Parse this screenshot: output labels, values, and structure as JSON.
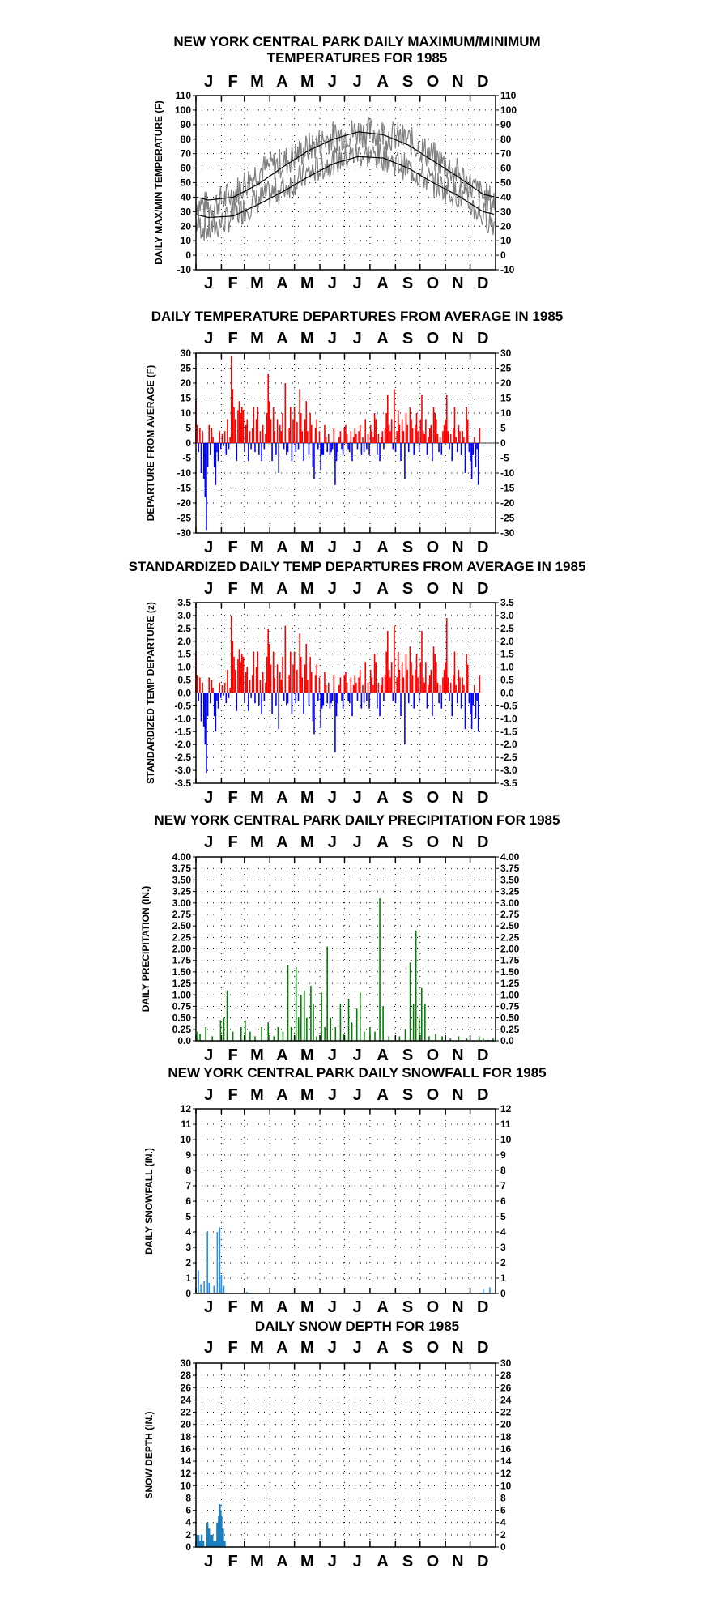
{
  "chart_data": [
    {
      "id": "temps",
      "type": "line",
      "title_lines": [
        "NEW YORK CENTRAL PARK DAILY MAXIMUM/MINIMUM",
        "TEMPERATURES FOR 1985"
      ],
      "ylabel": "DAILY MAX/MIN TEMPERATURE (F)",
      "ylim": [
        -10,
        110
      ],
      "yticks": [
        "110",
        "100",
        "90",
        "80",
        "70",
        "60",
        "50",
        "40",
        "30",
        "20",
        "10",
        "0",
        "-10"
      ],
      "months": [
        "J",
        "F",
        "M",
        "A",
        "M",
        "J",
        "J",
        "A",
        "S",
        "O",
        "N",
        "D"
      ],
      "grid": "dotted",
      "colors": {
        "observed": "#808080",
        "normals": "#000000"
      },
      "series": [
        {
          "role": "observed_max_monthly",
          "values": [
            33,
            42,
            58,
            64,
            74,
            82,
            85,
            84,
            79,
            68,
            56,
            40
          ]
        },
        {
          "role": "observed_min_monthly",
          "values": [
            17,
            27,
            38,
            46,
            56,
            65,
            70,
            68,
            60,
            50,
            42,
            27
          ]
        },
        {
          "role": "normal_max_monthly",
          "values": [
            38,
            40,
            49,
            61,
            72,
            80,
            85,
            83,
            76,
            65,
            54,
            42
          ]
        },
        {
          "role": "normal_min_monthly",
          "values": [
            26,
            27,
            35,
            44,
            54,
            63,
            68,
            67,
            60,
            50,
            41,
            30
          ]
        }
      ]
    },
    {
      "id": "departures",
      "type": "bar",
      "title_lines": [
        "DAILY TEMPERATURE DEPARTURES FROM AVERAGE IN 1985"
      ],
      "ylabel": "DEPARTURE FROM AVERAGE (F)",
      "ylim": [
        -30,
        30
      ],
      "yticks": [
        "30",
        "25",
        "20",
        "15",
        "10",
        "5",
        "0",
        "-5",
        "-10",
        "-15",
        "-20",
        "-25",
        "-30"
      ],
      "months": [
        "J",
        "F",
        "M",
        "A",
        "M",
        "J",
        "J",
        "A",
        "S",
        "O",
        "N",
        "D"
      ],
      "grid": "dotted",
      "colors": {
        "positive": "#ff0000",
        "negative": "#0000ff"
      },
      "values": [
        15,
        6,
        -3,
        5,
        -10,
        4,
        -12,
        -18,
        -29,
        -8,
        6,
        -4,
        5,
        2,
        -8,
        -14,
        -3,
        -6,
        4,
        -2,
        3,
        -1,
        4,
        -4,
        8,
        -2,
        2,
        29,
        18,
        12,
        8,
        -6,
        11,
        14,
        10,
        12,
        11,
        -3,
        6,
        8,
        -6,
        4,
        -2,
        5,
        12,
        -3,
        8,
        12,
        -4,
        4,
        -6,
        6,
        -2,
        3,
        10,
        23,
        14,
        8,
        -6,
        12,
        4,
        -4,
        8,
        -10,
        6,
        4,
        10,
        -2,
        20,
        -4,
        -3,
        5,
        12,
        -6,
        8,
        12,
        -3,
        7,
        -2,
        18,
        10,
        4,
        -6,
        8,
        14,
        4,
        -4,
        10,
        6,
        -8,
        -12,
        5,
        8,
        -2,
        4,
        -9,
        -4,
        -4,
        6,
        2,
        -3,
        3,
        -4,
        -3,
        -2,
        5,
        -14,
        -6,
        -3,
        2,
        4,
        -2,
        -4,
        5,
        6,
        3,
        -2,
        -3,
        4,
        -6,
        2,
        5,
        3,
        -2,
        4,
        6,
        -4,
        2,
        -3,
        8,
        -2,
        3,
        -4,
        6,
        4,
        2,
        10,
        8,
        -4,
        3,
        -6,
        2,
        4,
        -2,
        5,
        10,
        16,
        6,
        4,
        8,
        -2,
        18,
        -3,
        4,
        11,
        6,
        -6,
        8,
        4,
        -12,
        10,
        6,
        -3,
        12,
        8,
        5,
        -4,
        6,
        10,
        4,
        -3,
        8,
        16,
        4,
        3,
        8,
        -4,
        2,
        5,
        6,
        -6,
        12,
        10,
        8,
        3,
        -3,
        2,
        -4,
        4,
        6,
        8,
        16,
        4,
        -2,
        3,
        -6,
        5,
        12,
        2,
        -3,
        6,
        4,
        -4,
        4,
        2,
        -10,
        12,
        8,
        -3,
        -6,
        -12,
        -4,
        2,
        -8,
        -2,
        -14,
        5
      ],
      "day_per_bar": 1.6
    },
    {
      "id": "standardized",
      "type": "bar",
      "title_lines": [
        "STANDARDIZED DAILY TEMP DEPARTURES FROM AVERAGE IN 1985"
      ],
      "ylabel": "STANDARDIZED TEMP DEPARTURE (z)",
      "ylim": [
        -3.5,
        3.5
      ],
      "yticks": [
        "3.5",
        "3.0",
        "2.5",
        "2.0",
        "1.5",
        "1.0",
        "0.5",
        "0.0",
        "-0.5",
        "-1.0",
        "-1.5",
        "-2.0",
        "-2.5",
        "-3.0",
        "-3.5"
      ],
      "months": [
        "J",
        "F",
        "M",
        "A",
        "M",
        "J",
        "J",
        "A",
        "S",
        "O",
        "N",
        "D"
      ],
      "grid": "dotted",
      "colors": {
        "positive": "#ff0000",
        "negative": "#0000ff"
      },
      "values": [
        1.6,
        0.7,
        -0.3,
        0.6,
        -1.1,
        0.4,
        -1.3,
        -2.0,
        -3.1,
        -0.9,
        0.6,
        -0.4,
        0.5,
        0.2,
        -0.9,
        -1.5,
        -0.3,
        -0.6,
        0.4,
        -0.2,
        0.3,
        -0.1,
        0.4,
        -0.4,
        0.9,
        -0.2,
        0.2,
        3.0,
        2.0,
        1.4,
        0.9,
        -0.7,
        1.3,
        1.7,
        1.2,
        1.5,
        1.4,
        -0.4,
        0.8,
        1.0,
        -0.7,
        0.5,
        -0.2,
        0.7,
        1.6,
        -0.4,
        1.0,
        1.6,
        -0.5,
        0.5,
        -0.8,
        0.8,
        -0.3,
        0.4,
        1.4,
        2.5,
        1.9,
        1.1,
        -0.8,
        1.6,
        0.6,
        -0.5,
        1.1,
        -1.4,
        0.8,
        0.5,
        1.4,
        -0.3,
        2.6,
        -0.5,
        -0.4,
        0.7,
        1.6,
        -0.8,
        1.1,
        1.6,
        -0.4,
        0.9,
        -0.3,
        2.3,
        1.4,
        0.6,
        -0.8,
        1.1,
        1.9,
        0.5,
        -0.5,
        1.4,
        0.8,
        -1.1,
        -1.6,
        0.7,
        1.1,
        -0.3,
        0.6,
        -1.3,
        -0.6,
        -0.5,
        0.8,
        0.3,
        -0.4,
        0.4,
        -0.6,
        -0.4,
        -0.3,
        0.7,
        -2.3,
        -0.9,
        -0.4,
        0.3,
        0.6,
        -0.3,
        -0.6,
        0.7,
        0.8,
        0.4,
        -0.3,
        -0.4,
        0.6,
        -0.9,
        0.3,
        0.7,
        0.4,
        -0.3,
        0.6,
        0.9,
        -0.6,
        0.3,
        -0.4,
        1.2,
        -0.3,
        0.4,
        -0.6,
        0.9,
        0.6,
        0.3,
        1.5,
        1.2,
        -0.6,
        0.4,
        -0.9,
        0.3,
        0.6,
        -0.3,
        0.7,
        1.6,
        2.4,
        0.9,
        0.6,
        1.2,
        -0.3,
        2.6,
        -0.4,
        0.6,
        1.6,
        0.9,
        -0.9,
        1.2,
        0.6,
        -2.0,
        1.5,
        0.9,
        -0.4,
        1.8,
        1.2,
        0.7,
        -0.6,
        0.9,
        1.5,
        0.6,
        -0.4,
        1.2,
        2.4,
        0.6,
        0.4,
        1.2,
        -0.6,
        0.3,
        0.7,
        0.9,
        -0.9,
        1.8,
        1.5,
        1.2,
        0.4,
        -0.4,
        0.3,
        -0.6,
        0.6,
        0.9,
        1.2,
        2.9,
        0.6,
        -0.3,
        0.4,
        -0.9,
        0.7,
        1.6,
        0.3,
        -0.4,
        0.9,
        0.6,
        -0.6,
        0.6,
        0.3,
        -1.4,
        1.5,
        1.1,
        -0.4,
        -0.8,
        -1.4,
        -0.5,
        0.3,
        -1.0,
        -0.3,
        -1.5,
        0.7
      ],
      "day_per_bar": 1.6
    },
    {
      "id": "precip",
      "type": "bar",
      "title_lines": [
        "NEW YORK CENTRAL PARK DAILY PRECIPITATION FOR 1985"
      ],
      "ylabel": "DAILY PRECIPITATION (IN.)",
      "ylim": [
        0,
        4
      ],
      "yticks": [
        "4.00",
        "3.75",
        "3.50",
        "3.25",
        "3.00",
        "2.75",
        "2.50",
        "2.25",
        "2.00",
        "1.75",
        "1.50",
        "1.25",
        "1.00",
        "0.75",
        "0.50",
        "0.25",
        "0.0"
      ],
      "months": [
        "J",
        "F",
        "M",
        "A",
        "M",
        "J",
        "J",
        "A",
        "S",
        "O",
        "N",
        "D"
      ],
      "grid": "dotted",
      "colors": {
        "bars": "#008000"
      },
      "events": [
        [
          2,
          0.2
        ],
        [
          5,
          0.15
        ],
        [
          12,
          0.3
        ],
        [
          20,
          0.1
        ],
        [
          30,
          0.45
        ],
        [
          34,
          0.5
        ],
        [
          38,
          1.1
        ],
        [
          45,
          0.2
        ],
        [
          55,
          0.3
        ],
        [
          60,
          0.45
        ],
        [
          66,
          0.2
        ],
        [
          72,
          0.1
        ],
        [
          80,
          0.3
        ],
        [
          88,
          0.4
        ],
        [
          95,
          0.1
        ],
        [
          100,
          0.3
        ],
        [
          106,
          0.2
        ],
        [
          112,
          1.65
        ],
        [
          116,
          0.3
        ],
        [
          122,
          1.6
        ],
        [
          125,
          0.5
        ],
        [
          128,
          1.0
        ],
        [
          132,
          1.1
        ],
        [
          135,
          0.5
        ],
        [
          140,
          1.2
        ],
        [
          143,
          0.8
        ],
        [
          147,
          0.1
        ],
        [
          153,
          1.05
        ],
        [
          157,
          0.3
        ],
        [
          160,
          2.05
        ],
        [
          164,
          0.5
        ],
        [
          170,
          0.3
        ],
        [
          176,
          0.8
        ],
        [
          180,
          0.15
        ],
        [
          186,
          0.9
        ],
        [
          190,
          0.4
        ],
        [
          196,
          0.7
        ],
        [
          200,
          1.05
        ],
        [
          205,
          0.2
        ],
        [
          212,
          0.3
        ],
        [
          218,
          0.2
        ],
        [
          224,
          3.1
        ],
        [
          228,
          0.75
        ],
        [
          235,
          0.1
        ],
        [
          248,
          0.1
        ],
        [
          255,
          0.25
        ],
        [
          261,
          1.7
        ],
        [
          265,
          0.8
        ],
        [
          268,
          2.4
        ],
        [
          272,
          0.5
        ],
        [
          275,
          1.15
        ],
        [
          279,
          0.8
        ],
        [
          284,
          0.1
        ],
        [
          292,
          0.15
        ],
        [
          300,
          0.1
        ],
        [
          310,
          0.05
        ],
        [
          320,
          0.1
        ],
        [
          330,
          0.05
        ],
        [
          345,
          0.1
        ],
        [
          350,
          0.05
        ],
        [
          356,
          0.02
        ],
        [
          362,
          0.05
        ]
      ]
    },
    {
      "id": "snowfall",
      "type": "bar",
      "title_lines": [
        "NEW YORK CENTRAL PARK DAILY SNOWFALL FOR 1985"
      ],
      "ylabel": "DAILY SNOWFALL (IN.)",
      "ylim": [
        0,
        12
      ],
      "yticks": [
        "12",
        "11",
        "10",
        "9",
        "8",
        "7",
        "6",
        "5",
        "4",
        "3",
        "2",
        "1",
        "0"
      ],
      "months": [
        "J",
        "F",
        "M",
        "A",
        "M",
        "J",
        "J",
        "A",
        "S",
        "O",
        "N",
        "D"
      ],
      "grid": "dotted",
      "colors": {
        "bars": "#1e90ff"
      },
      "events": [
        [
          3,
          1.5
        ],
        [
          6,
          0.6
        ],
        [
          10,
          0.8
        ],
        [
          14,
          4.0
        ],
        [
          16,
          0.7
        ],
        [
          22,
          0.5
        ],
        [
          26,
          4.0
        ],
        [
          29,
          4.3
        ],
        [
          31,
          1.2
        ],
        [
          34,
          0.5
        ],
        [
          62,
          0.1
        ],
        [
          350,
          0.3
        ],
        [
          358,
          0.4
        ]
      ]
    },
    {
      "id": "snowdepth",
      "type": "area",
      "title_lines": [
        "DAILY SNOW DEPTH FOR 1985"
      ],
      "ylabel": "SNOW DEPTH (IN.)",
      "ylim": [
        0,
        30
      ],
      "yticks_left": [
        "30",
        "28",
        "26",
        "24",
        "22",
        "20",
        "18",
        "16",
        "14",
        "12",
        "10",
        "8",
        "6",
        "4",
        "2",
        "0"
      ],
      "yticks_right": [
        "30",
        "28",
        "26",
        "24",
        "22",
        "20",
        "18",
        "16",
        "14",
        "12",
        "10",
        "8",
        "6",
        "4",
        "2",
        "0"
      ],
      "months": [
        "J",
        "F",
        "M",
        "A",
        "M",
        "J",
        "J",
        "A",
        "S",
        "O",
        "N",
        "D"
      ],
      "grid": "dotted",
      "colors": {
        "bars": "#1a7fc1"
      },
      "events": [
        [
          1,
          2
        ],
        [
          3,
          2
        ],
        [
          5,
          1
        ],
        [
          7,
          2
        ],
        [
          9,
          1
        ],
        [
          14,
          4
        ],
        [
          16,
          3
        ],
        [
          18,
          2
        ],
        [
          20,
          2
        ],
        [
          22,
          1
        ],
        [
          24,
          1
        ],
        [
          26,
          4
        ],
        [
          28,
          5
        ],
        [
          29,
          7
        ],
        [
          30,
          6
        ],
        [
          31,
          5
        ],
        [
          33,
          3
        ],
        [
          35,
          1
        ]
      ]
    }
  ]
}
